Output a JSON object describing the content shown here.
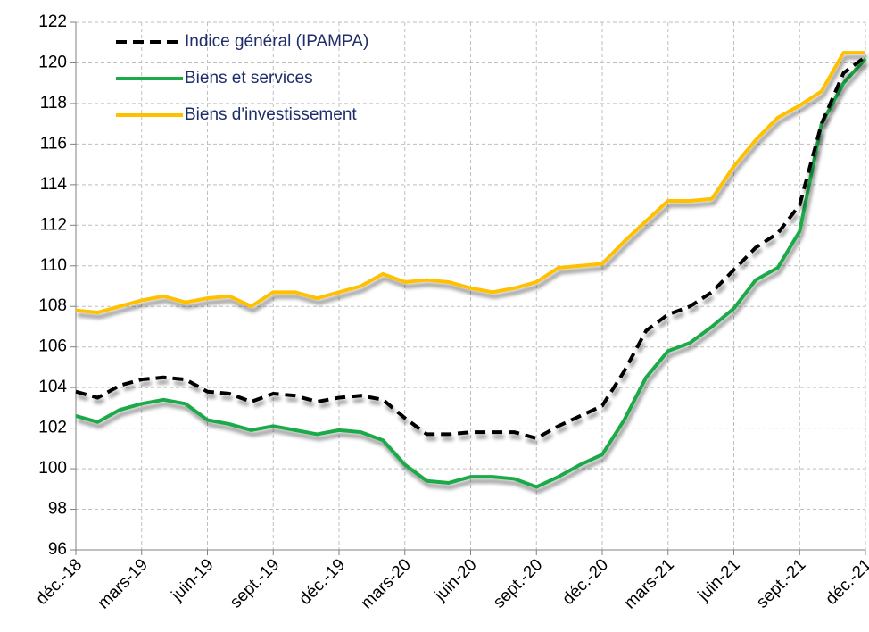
{
  "chart_data": {
    "type": "line",
    "categories": [
      "déc.-18",
      null,
      null,
      "mars-19",
      null,
      null,
      "juin-19",
      null,
      null,
      "sept.-19",
      null,
      null,
      "déc.-19",
      null,
      null,
      "mars-20",
      null,
      null,
      "juin-20",
      null,
      null,
      "sept.-20",
      null,
      null,
      "déc.-20",
      null,
      null,
      "mars-21",
      null,
      null,
      "juin-21",
      null,
      null,
      "sept.-21",
      null,
      null,
      "déc.-21"
    ],
    "series": [
      {
        "name": "Indice général (IPAMPA)",
        "color": "#000000",
        "dashed": true,
        "values": [
          103.8,
          103.5,
          104.1,
          104.4,
          104.5,
          104.4,
          103.8,
          103.7,
          103.3,
          103.7,
          103.6,
          103.3,
          103.5,
          103.6,
          103.4,
          102.5,
          101.7,
          101.7,
          101.8,
          101.8,
          101.8,
          101.5,
          102.1,
          102.6,
          103.1,
          104.8,
          106.8,
          107.6,
          108.0,
          108.7,
          109.8,
          110.9,
          111.6,
          113.0,
          117.0,
          119.5,
          120.3
        ]
      },
      {
        "name": "Biens et services",
        "color": "#1aaa4a",
        "dashed": false,
        "values": [
          102.6,
          102.3,
          102.9,
          103.2,
          103.4,
          103.2,
          102.4,
          102.2,
          101.9,
          102.1,
          101.9,
          101.7,
          101.9,
          101.8,
          101.4,
          100.2,
          99.4,
          99.3,
          99.6,
          99.6,
          99.5,
          99.1,
          99.6,
          100.2,
          100.7,
          102.4,
          104.5,
          105.8,
          106.2,
          107.0,
          107.9,
          109.3,
          109.9,
          111.7,
          117.0,
          119.0,
          120.2
        ]
      },
      {
        "name": "Biens d'investissement",
        "color": "#ffc000",
        "dashed": false,
        "values": [
          107.8,
          107.7,
          108.0,
          108.3,
          108.5,
          108.2,
          108.4,
          108.5,
          108.0,
          108.7,
          108.7,
          108.4,
          108.7,
          109.0,
          109.6,
          109.2,
          109.3,
          109.2,
          108.9,
          108.7,
          108.9,
          109.2,
          109.9,
          110.0,
          110.1,
          111.2,
          112.2,
          113.2,
          113.2,
          113.3,
          114.9,
          116.2,
          117.3,
          117.9,
          118.6,
          120.5,
          120.5
        ]
      }
    ],
    "ylim": [
      96,
      122
    ],
    "yticks": [
      96,
      98,
      100,
      102,
      104,
      106,
      108,
      110,
      112,
      114,
      116,
      118,
      120,
      122
    ],
    "grid": true,
    "legend": "upper left"
  }
}
